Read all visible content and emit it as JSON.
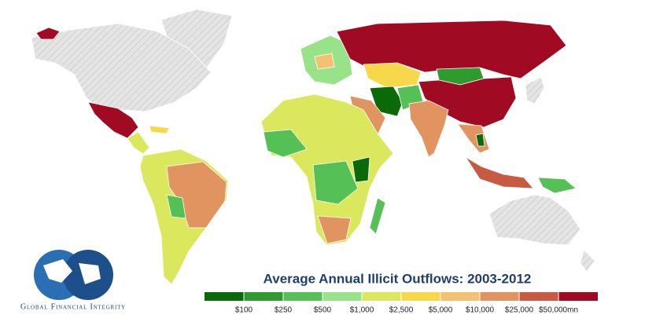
{
  "title": "Average Annual Illicit Outflows: 2003-2012",
  "legend": {
    "colors": [
      "#0a6a0a",
      "#2f9a2f",
      "#55c055",
      "#98e38a",
      "#dbe75d",
      "#f6d84a",
      "#f4c172",
      "#e19360",
      "#c75a43",
      "#a00a22"
    ],
    "labels": [
      "$100",
      "$250",
      "$500",
      "$1,000",
      "$2,500",
      "$5,000",
      "$10,000",
      "$25,000",
      "$50,000mn"
    ]
  },
  "logo": {
    "text": "Global Financial Integrity"
  }
}
